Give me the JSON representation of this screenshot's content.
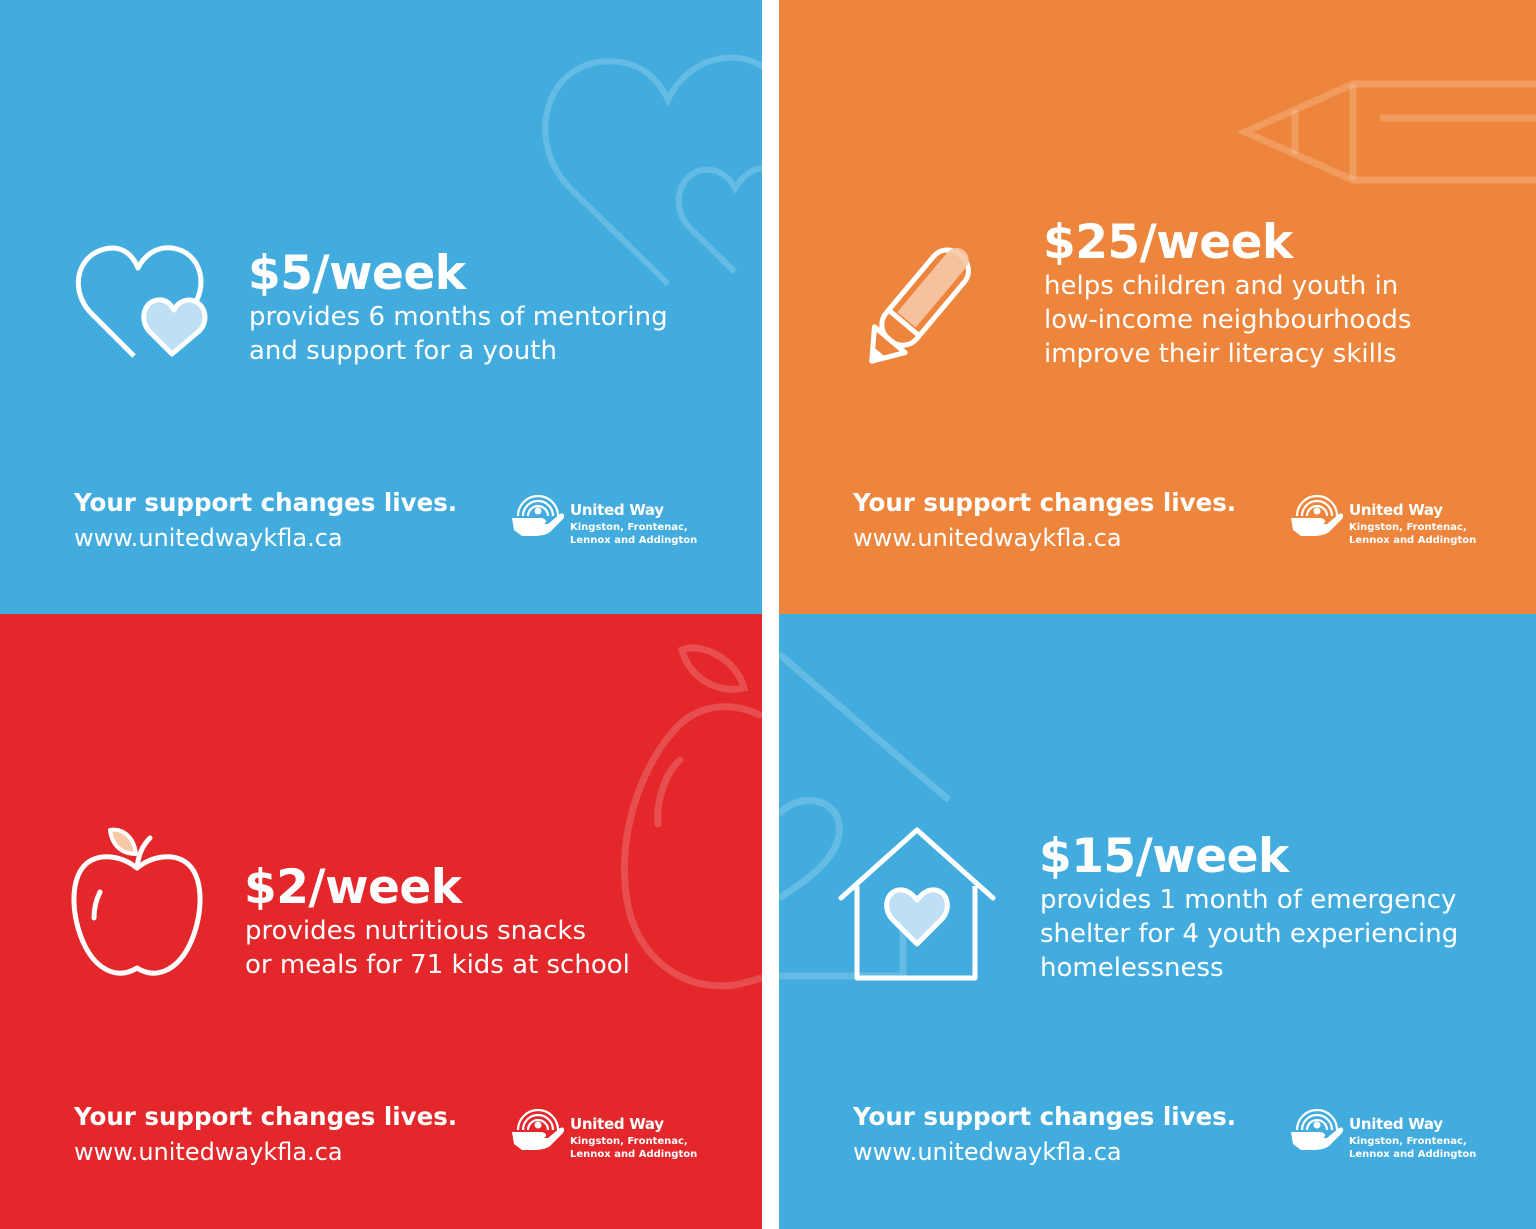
{
  "colors": {
    "blue": "#43ACDE",
    "orange": "#EE853C",
    "red": "#E3272A",
    "white": "#FFFFFF",
    "light_blue_fill": "#BFE0F4",
    "peach_fill": "#F6C9A7"
  },
  "cards": [
    {
      "color": "#43ACDE",
      "icon": "double-heart-icon",
      "price": "$5/week",
      "description": [
        "provides 6 months of mentoring",
        "and support for a youth"
      ],
      "tagline": "Your support changes lives.",
      "url": "www.unitedwaykfla.ca",
      "logo": {
        "name": "United Way",
        "sub": [
          "Kingston, Frontenac,",
          "Lennox and Addington"
        ]
      }
    },
    {
      "color": "#EE853C",
      "icon": "pencil-icon",
      "price": "$25/week",
      "description": [
        "helps children and youth in",
        "low-income neighbourhoods",
        "improve their literacy skills"
      ],
      "tagline": "Your support changes lives.",
      "url": "www.unitedwaykfla.ca",
      "logo": {
        "name": "United Way",
        "sub": [
          "Kingston, Frontenac,",
          "Lennox and Addington"
        ]
      }
    },
    {
      "color": "#E3272A",
      "icon": "apple-icon",
      "price": "$2/week",
      "description": [
        "provides nutritious snacks",
        "or meals for 71 kids at school"
      ],
      "tagline": "Your support changes lives.",
      "url": "www.unitedwaykfla.ca",
      "logo": {
        "name": "United Way",
        "sub": [
          "Kingston, Frontenac,",
          "Lennox and Addington"
        ]
      }
    },
    {
      "color": "#43ACDE",
      "icon": "house-heart-icon",
      "price": "$15/week",
      "description": [
        "provides 1 month of emergency",
        "shelter for 4 youth experiencing",
        "homelessness"
      ],
      "tagline": "Your support changes lives.",
      "url": "www.unitedwaykfla.ca",
      "logo": {
        "name": "United Way",
        "sub": [
          "Kingston, Frontenac,",
          "Lennox and Addington"
        ]
      }
    }
  ]
}
